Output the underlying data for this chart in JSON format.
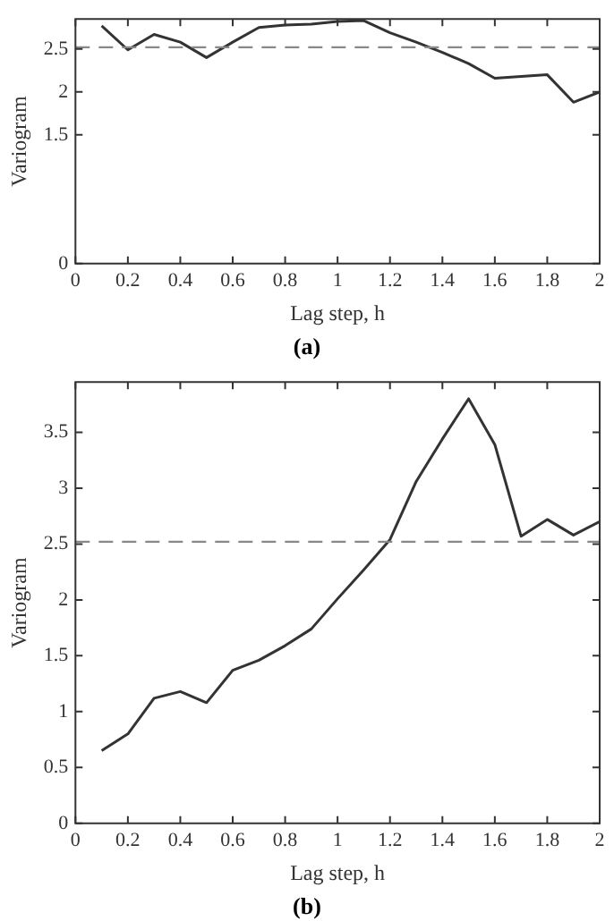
{
  "chart_data": [
    {
      "type": "line",
      "xlabel": "Lag step, h",
      "ylabel": "Variogram",
      "annotations": [
        "(a)"
      ],
      "x": [
        0.1,
        0.2,
        0.3,
        0.4,
        0.5,
        0.6,
        0.7,
        0.8,
        0.9,
        1.0,
        1.1,
        1.2,
        1.3,
        1.4,
        1.5,
        1.6,
        1.7,
        1.8,
        1.9,
        2.0
      ],
      "series": [
        {
          "color": "#333333",
          "values": [
            2.77,
            2.49,
            2.67,
            2.58,
            2.4,
            2.58,
            2.75,
            2.78,
            2.79,
            2.82,
            2.83,
            2.69,
            2.58,
            2.46,
            2.33,
            2.16,
            2.18,
            2.2,
            1.88,
            2.0
          ]
        }
      ],
      "xlim": [
        0,
        2
      ],
      "xticks": [
        0,
        0.2,
        0.4,
        0.6,
        0.8,
        1,
        1.2,
        1.4,
        1.6,
        1.8,
        2
      ],
      "ylim": [
        0,
        2.85
      ],
      "yticks": [
        0,
        1.5,
        2,
        2.5
      ],
      "ref_lines": [
        {
          "axis": "y",
          "value": 2.52,
          "color": "#888888",
          "line_style": "dashed"
        }
      ],
      "grid": false,
      "legend": false,
      "marker": "none",
      "line_style": "solid"
    },
    {
      "type": "line",
      "xlabel": "Lag step, h",
      "ylabel": "Variogram",
      "annotations": [
        "(b)"
      ],
      "x": [
        0.1,
        0.2,
        0.3,
        0.4,
        0.5,
        0.6,
        0.7,
        0.8,
        0.9,
        1.0,
        1.1,
        1.2,
        1.3,
        1.4,
        1.5,
        1.6,
        1.7,
        1.8,
        1.9,
        2.0
      ],
      "series": [
        {
          "color": "#333333",
          "values": [
            0.65,
            0.8,
            1.12,
            1.18,
            1.08,
            1.37,
            1.46,
            1.59,
            1.74,
            2.01,
            2.27,
            2.54,
            3.06,
            3.44,
            3.8,
            3.39,
            2.57,
            2.72,
            2.58,
            2.7
          ]
        }
      ],
      "xlim": [
        0,
        2
      ],
      "xticks": [
        0,
        0.2,
        0.4,
        0.6,
        0.8,
        1,
        1.2,
        1.4,
        1.6,
        1.8,
        2
      ],
      "ylim": [
        0,
        3.95
      ],
      "yticks": [
        0,
        0.5,
        1,
        1.5,
        2,
        2.5,
        3,
        3.5
      ],
      "ref_lines": [
        {
          "axis": "y",
          "value": 2.52,
          "color": "#888888",
          "line_style": "dashed"
        }
      ],
      "grid": false,
      "legend": false,
      "marker": "none",
      "line_style": "solid"
    }
  ]
}
